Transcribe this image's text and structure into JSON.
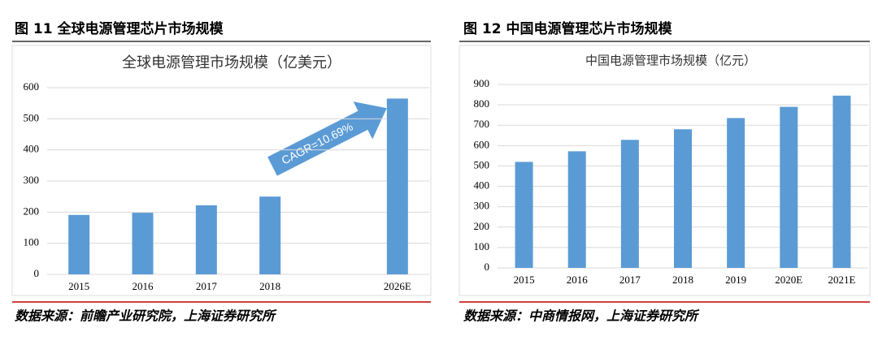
{
  "figures": [
    "图 11 全球电源管理芯片市场规模",
    "图 12 中国电源管理芯片市场规模"
  ],
  "sources": [
    "数据来源：前瞻产业研究院，上海证券研究所",
    "数据来源：中商情报网，上海证券研究所"
  ],
  "chart_data": [
    {
      "type": "bar",
      "title": "全球电源管理市场规模（亿美元）",
      "categories": [
        "2015",
        "2016",
        "2017",
        "2018",
        null,
        "2026E"
      ],
      "values": [
        191,
        198,
        222,
        250,
        null,
        565
      ],
      "color": "#5b9bd5",
      "ylim": [
        0,
        600
      ],
      "yticks": [
        0,
        100,
        200,
        300,
        400,
        500,
        600
      ],
      "grid": true,
      "annotation": "CAGR=10.69%"
    },
    {
      "type": "bar",
      "title": "中国电源管理市场规模（亿元）",
      "categories": [
        "2015",
        "2016",
        "2017",
        "2018",
        "2019",
        "2020E",
        "2021E"
      ],
      "values": [
        520,
        572,
        628,
        680,
        735,
        790,
        845
      ],
      "color": "#5b9bd5",
      "ylim": [
        0,
        900
      ],
      "yticks": [
        0,
        100,
        200,
        300,
        400,
        500,
        600,
        700,
        800,
        900
      ],
      "grid": true
    }
  ]
}
